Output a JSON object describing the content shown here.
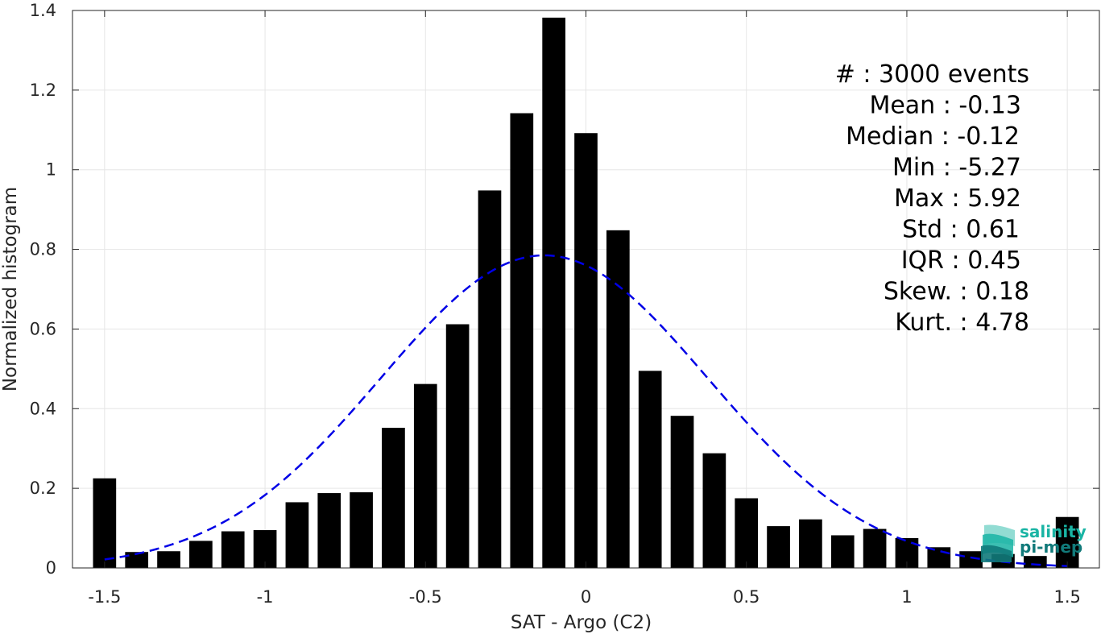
{
  "chart_data": {
    "type": "bar",
    "xlabel": "SAT - Argo (C2)",
    "ylabel": "Normalized histogram",
    "xlim": [
      -1.6,
      1.6
    ],
    "ylim": [
      0,
      1.4
    ],
    "xticks": [
      "-1.5",
      "-1",
      "-0.5",
      "0",
      "0.5",
      "1",
      "1.5"
    ],
    "yticks": [
      "0",
      "0.2",
      "0.4",
      "0.6",
      "0.8",
      "1",
      "1.2",
      "1.4"
    ],
    "grid": true,
    "bin_width": 0.1,
    "bins": [
      {
        "x": -1.5,
        "y": 0.225
      },
      {
        "x": -1.4,
        "y": 0.04
      },
      {
        "x": -1.3,
        "y": 0.042
      },
      {
        "x": -1.2,
        "y": 0.068
      },
      {
        "x": -1.1,
        "y": 0.092
      },
      {
        "x": -1.0,
        "y": 0.095
      },
      {
        "x": -0.9,
        "y": 0.165
      },
      {
        "x": -0.8,
        "y": 0.188
      },
      {
        "x": -0.7,
        "y": 0.19
      },
      {
        "x": -0.6,
        "y": 0.352
      },
      {
        "x": -0.5,
        "y": 0.462
      },
      {
        "x": -0.4,
        "y": 0.612
      },
      {
        "x": -0.3,
        "y": 0.948
      },
      {
        "x": -0.2,
        "y": 1.142
      },
      {
        "x": -0.1,
        "y": 1.382
      },
      {
        "x": 0.0,
        "y": 1.092
      },
      {
        "x": 0.1,
        "y": 0.848
      },
      {
        "x": 0.2,
        "y": 0.495
      },
      {
        "x": 0.3,
        "y": 0.382
      },
      {
        "x": 0.4,
        "y": 0.288
      },
      {
        "x": 0.5,
        "y": 0.175
      },
      {
        "x": 0.6,
        "y": 0.105
      },
      {
        "x": 0.7,
        "y": 0.122
      },
      {
        "x": 0.8,
        "y": 0.082
      },
      {
        "x": 0.9,
        "y": 0.098
      },
      {
        "x": 1.0,
        "y": 0.075
      },
      {
        "x": 1.1,
        "y": 0.052
      },
      {
        "x": 1.2,
        "y": 0.042
      },
      {
        "x": 1.3,
        "y": 0.035
      },
      {
        "x": 1.4,
        "y": 0.03
      },
      {
        "x": 1.5,
        "y": 0.128
      }
    ],
    "fit_curve": {
      "style": "dashed",
      "color": "#0000e6",
      "mean": -0.13,
      "std": 0.51,
      "peak": 0.785,
      "x_range": [
        -1.5,
        1.5
      ]
    },
    "bar_color": "#000000"
  },
  "stats": [
    "#  : 3000 events",
    "Mean : -0.13",
    "Median : -0.12",
    "Min : -5.27",
    "Max : 5.92",
    "Std : 0.61",
    "IQR : 0.45",
    "Skew. : 0.18",
    "Kurt. : 4.78"
  ],
  "logo": {
    "line1": "salinity",
    "line2": "pi-mep",
    "color_primary": "#19b4a4",
    "color_secondary": "#117a7a"
  }
}
